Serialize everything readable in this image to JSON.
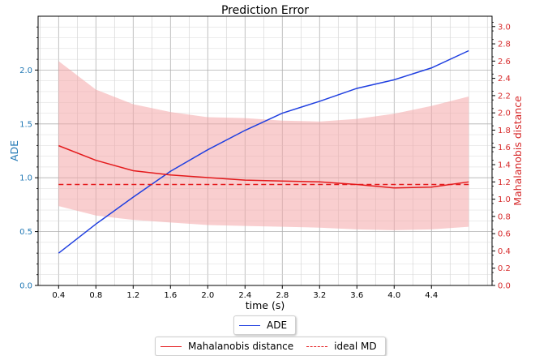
{
  "chart_data": {
    "type": "line",
    "title": "Prediction Error",
    "xlabel": "time (s)",
    "x_ticks": [
      "0.4",
      "0.8",
      "1.2",
      "1.6",
      "2.0",
      "2.4",
      "2.8",
      "3.2",
      "3.6",
      "4.0",
      "4.4"
    ],
    "xlim": [
      0.18,
      5.05
    ],
    "left_axis": {
      "label": "ADE",
      "color": "#1f77b4",
      "ylim": [
        0,
        2.5
      ],
      "ticks": [
        "0.0",
        "0.5",
        "1.0",
        "1.5",
        "2.0"
      ]
    },
    "right_axis": {
      "label": "Mahalanobis distance",
      "color": "#d62728",
      "ylim": [
        0,
        3.12
      ],
      "ticks": [
        "0.0",
        "0.2",
        "0.4",
        "0.6",
        "0.8",
        "1.0",
        "1.2",
        "1.4",
        "1.6",
        "1.8",
        "2.0",
        "2.2",
        "2.4",
        "2.6",
        "2.8",
        "3.0"
      ]
    },
    "x": [
      0.4,
      0.8,
      1.2,
      1.6,
      2.0,
      2.4,
      2.8,
      3.2,
      3.6,
      4.0,
      4.4,
      4.8
    ],
    "series": [
      {
        "name": "ADE",
        "axis": "left",
        "color": "#1f3fe0",
        "style": "solid",
        "values": [
          0.3,
          0.57,
          0.82,
          1.06,
          1.26,
          1.44,
          1.6,
          1.71,
          1.83,
          1.91,
          2.02,
          2.18
        ]
      },
      {
        "name": "Mahalanobis distance",
        "axis": "right",
        "color": "#e41a1c",
        "style": "solid",
        "values": [
          1.62,
          1.45,
          1.33,
          1.28,
          1.25,
          1.22,
          1.21,
          1.2,
          1.17,
          1.13,
          1.14,
          1.2
        ]
      },
      {
        "name": "ideal MD",
        "axis": "right",
        "color": "#e41a1c",
        "style": "dashed",
        "values": [
          1.17,
          1.17,
          1.17,
          1.17,
          1.17,
          1.17,
          1.17,
          1.17,
          1.17,
          1.17,
          1.17,
          1.17
        ]
      }
    ],
    "band": {
      "axis": "right",
      "color": "#f4a6a8",
      "upper": [
        2.6,
        2.27,
        2.1,
        2.01,
        1.95,
        1.94,
        1.91,
        1.9,
        1.93,
        1.99,
        2.08,
        2.19
      ],
      "lower": [
        0.92,
        0.81,
        0.76,
        0.73,
        0.7,
        0.69,
        0.68,
        0.67,
        0.65,
        0.64,
        0.65,
        0.68
      ]
    },
    "grid": true,
    "legends": [
      {
        "placement": "below-center",
        "entries": [
          "ADE"
        ]
      },
      {
        "placement": "bottom-center",
        "entries": [
          "Mahalanobis distance",
          "ideal MD"
        ]
      }
    ]
  }
}
